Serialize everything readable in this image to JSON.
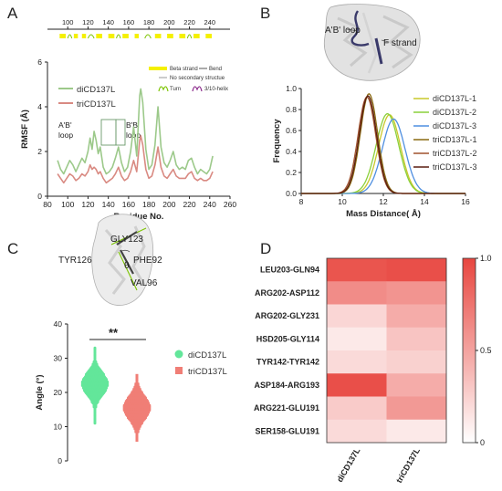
{
  "panels": {
    "a": "A",
    "b": "B",
    "c": "C",
    "d": "D"
  },
  "chart_data": [
    {
      "panel": "A",
      "type": "line",
      "xlabel": "Residue No.",
      "ylabel": "RMSF (Å)",
      "xlim": [
        80,
        260
      ],
      "ylim": [
        0,
        6
      ],
      "xticks": [
        80,
        100,
        120,
        140,
        160,
        180,
        200,
        220,
        240,
        260
      ],
      "yticks": [
        0,
        2,
        4,
        6
      ],
      "secstruct_ticks": [
        100,
        120,
        140,
        160,
        180,
        200,
        220,
        240
      ],
      "secstruct_legend": [
        "Beta strand",
        "Bend",
        "No secondary structue",
        "Turn",
        "3/10-helix"
      ],
      "secstruct_colors": {
        "Beta strand": "#f5f000",
        "Bend": "#555555",
        "No secondary structue": "#999999",
        "Turn": "#7cc400",
        "3/10-helix": "#8b2a8b"
      },
      "annotations": [
        "A'B' loop",
        "B'B loop"
      ],
      "series": [
        {
          "name": "diCD137L",
          "color": "#9cc98a",
          "x": [
            90,
            93,
            96,
            99,
            102,
            105,
            108,
            111,
            114,
            117,
            120,
            122,
            124,
            126,
            128,
            130,
            132,
            135,
            138,
            141,
            144,
            147,
            150,
            153,
            156,
            159,
            162,
            165,
            168,
            171,
            172,
            174,
            177,
            180,
            183,
            186,
            189,
            192,
            195,
            198,
            201,
            204,
            207,
            210,
            213,
            216,
            219,
            222,
            225,
            228,
            231,
            234,
            237,
            240,
            243
          ],
          "y": [
            1.6,
            1.2,
            1.0,
            1.3,
            1.6,
            1.4,
            1.1,
            1.4,
            1.7,
            1.5,
            2.0,
            2.6,
            2.1,
            2.9,
            2.5,
            1.9,
            2.2,
            1.3,
            1.0,
            1.1,
            1.3,
            1.7,
            2.2,
            1.5,
            1.1,
            1.3,
            2.0,
            3.1,
            1.8,
            4.5,
            4.8,
            4.2,
            2.1,
            1.2,
            1.4,
            2.3,
            4.0,
            2.2,
            1.5,
            1.3,
            1.6,
            2.0,
            1.4,
            1.2,
            1.3,
            1.2,
            1.6,
            1.7,
            1.3,
            1.0,
            1.2,
            1.1,
            1.0,
            1.2,
            1.8
          ]
        },
        {
          "name": "triCD137L",
          "color": "#d98a82",
          "x": [
            90,
            93,
            96,
            99,
            102,
            105,
            108,
            111,
            114,
            117,
            120,
            122,
            124,
            126,
            128,
            130,
            132,
            135,
            138,
            141,
            144,
            147,
            150,
            153,
            156,
            159,
            162,
            165,
            168,
            171,
            172,
            174,
            177,
            180,
            183,
            186,
            189,
            192,
            195,
            198,
            201,
            204,
            207,
            210,
            213,
            216,
            219,
            222,
            225,
            228,
            231,
            234,
            237,
            240,
            243
          ],
          "y": [
            1.0,
            0.8,
            0.6,
            0.8,
            1.0,
            0.9,
            0.7,
            0.8,
            1.0,
            0.9,
            1.1,
            1.4,
            1.2,
            1.3,
            1.2,
            1.0,
            1.1,
            0.8,
            0.6,
            0.7,
            0.8,
            1.0,
            1.3,
            0.9,
            0.7,
            0.8,
            1.1,
            1.6,
            1.1,
            2.5,
            2.7,
            2.3,
            1.2,
            0.8,
            0.9,
            1.4,
            2.2,
            1.3,
            0.9,
            0.8,
            1.0,
            1.2,
            0.9,
            0.8,
            0.8,
            0.8,
            1.0,
            1.1,
            0.8,
            0.7,
            0.8,
            0.7,
            0.7,
            0.8,
            1.1
          ]
        }
      ]
    },
    {
      "panel": "B",
      "type": "line",
      "xlabel": "Mass Distance( Å)",
      "ylabel": "Frequency",
      "xlim": [
        8,
        16
      ],
      "ylim": [
        0,
        1.0
      ],
      "xticks": [
        8,
        10,
        12,
        14,
        16
      ],
      "yticks": [
        0.0,
        0.2,
        0.4,
        0.6,
        0.8,
        1.0
      ],
      "structure_labels": [
        "A'B' loop",
        "F strand"
      ],
      "series": [
        {
          "name": "diCD137L-1",
          "color": "#c8c82a",
          "mean": 12.3,
          "sd": 0.53,
          "peak": 0.75
        },
        {
          "name": "diCD137L-2",
          "color": "#8ad03a",
          "mean": 12.2,
          "sd": 0.55,
          "peak": 0.76
        },
        {
          "name": "diCD137L-3",
          "color": "#4f8fe0",
          "mean": 12.5,
          "sd": 0.55,
          "peak": 0.71
        },
        {
          "name": "triCD137L-1",
          "color": "#8a6a10",
          "mean": 11.3,
          "sd": 0.42,
          "peak": 0.95
        },
        {
          "name": "triCD137L-2",
          "color": "#a0522d",
          "mean": 11.2,
          "sd": 0.43,
          "peak": 0.92
        },
        {
          "name": "triCD137L-3",
          "color": "#5a1f10",
          "mean": 11.25,
          "sd": 0.42,
          "peak": 0.93
        }
      ]
    },
    {
      "panel": "C",
      "type": "scatter",
      "ylabel": "Angle (°)",
      "ylim": [
        0,
        40
      ],
      "yticks": [
        0,
        10,
        20,
        30,
        40
      ],
      "significance": "**",
      "structure_labels": [
        "GLY123",
        "TYR126",
        "PHE92",
        "VAL96",
        "θ"
      ],
      "series": [
        {
          "name": "diCD137L",
          "color": "#63e69a",
          "center": 22.5,
          "spread_sd": 3.2,
          "min": 11,
          "max": 33
        },
        {
          "name": "triCD137L",
          "color": "#f07e76",
          "center": 15.5,
          "spread_sd": 3.3,
          "min": 6,
          "max": 25
        }
      ]
    },
    {
      "panel": "D",
      "type": "heatmap",
      "rows": [
        "LEU203-GLN94",
        "ARG202-ASP112",
        "ARG202-GLY231",
        "HSD205-GLY114",
        "TYR142-TYR142",
        "ASP184-ARG193",
        "ARG221-GLU191",
        "SER158-GLU191"
      ],
      "columns": [
        "diCD137L",
        "triCD137L"
      ],
      "values": [
        [
          0.92,
          0.95
        ],
        [
          0.62,
          0.58
        ],
        [
          0.22,
          0.45
        ],
        [
          0.12,
          0.32
        ],
        [
          0.2,
          0.25
        ],
        [
          0.95,
          0.45
        ],
        [
          0.28,
          0.55
        ],
        [
          0.2,
          0.12
        ]
      ],
      "colorbar_ticks": [
        0,
        0.5,
        1.0
      ],
      "colorbar_tick_labels": [
        "0",
        "0.5",
        "1.0"
      ],
      "color_low": "#ffffff",
      "color_high": "#e8463f"
    }
  ]
}
